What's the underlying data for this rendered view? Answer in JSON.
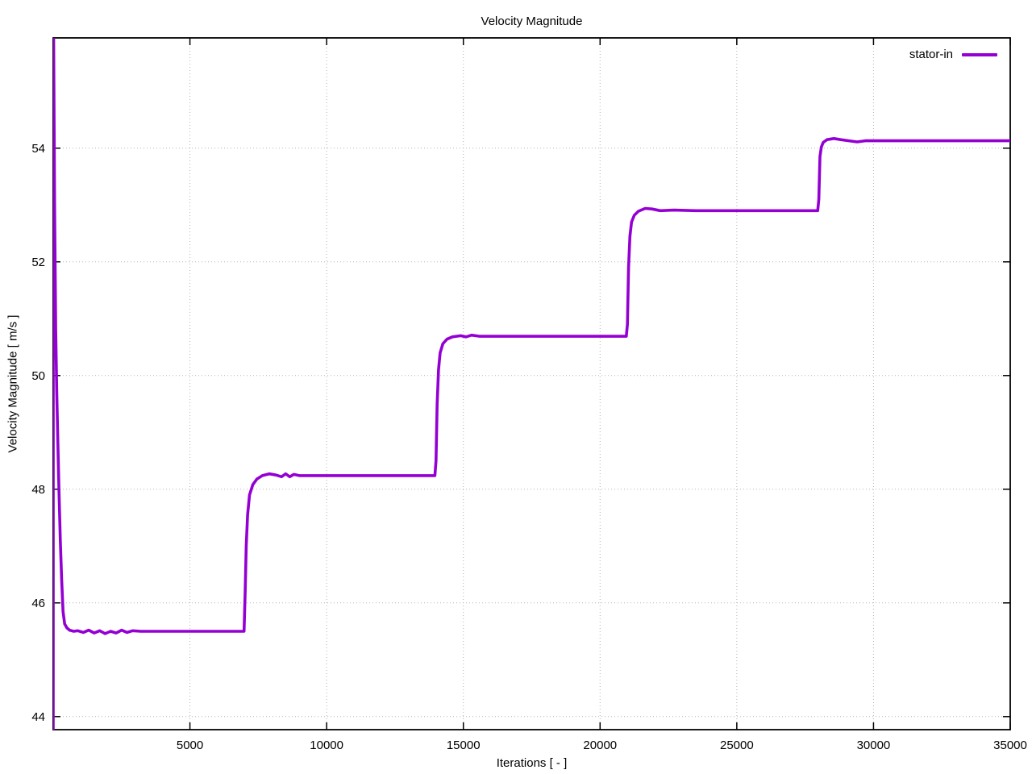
{
  "chart_data": {
    "type": "line",
    "title": "Velocity Magnitude",
    "xlabel": "Iterations [ - ]",
    "ylabel": "Velocity Magnitude [ m/s ]",
    "xlim": [
      0,
      35000
    ],
    "ylim": [
      43.77,
      55.94
    ],
    "xticks": [
      5000,
      10000,
      15000,
      20000,
      25000,
      30000,
      35000
    ],
    "yticks": [
      44,
      46,
      48,
      50,
      52,
      54
    ],
    "grid": true,
    "grid_style": "dotted",
    "legend_position": "top-right-inside",
    "background_color": "#ffffff",
    "grid_color": "#b3b3b3",
    "border_color": "#000000",
    "series": [
      {
        "name": "stator-in",
        "color": "#9400d3",
        "points": [
          [
            0,
            43.0
          ],
          [
            3,
            57.0
          ],
          [
            50,
            53.0
          ],
          [
            90,
            50.8
          ],
          [
            130,
            49.7
          ],
          [
            170,
            48.8
          ],
          [
            210,
            48.0
          ],
          [
            260,
            47.1
          ],
          [
            310,
            46.4
          ],
          [
            360,
            45.85
          ],
          [
            420,
            45.63
          ],
          [
            500,
            45.56
          ],
          [
            600,
            45.52
          ],
          [
            750,
            45.5
          ],
          [
            900,
            45.51
          ],
          [
            1100,
            45.48
          ],
          [
            1300,
            45.52
          ],
          [
            1500,
            45.47
          ],
          [
            1700,
            45.51
          ],
          [
            1900,
            45.46
          ],
          [
            2100,
            45.5
          ],
          [
            2300,
            45.47
          ],
          [
            2500,
            45.52
          ],
          [
            2700,
            45.48
          ],
          [
            2900,
            45.51
          ],
          [
            3200,
            45.5
          ],
          [
            3600,
            45.5
          ],
          [
            4200,
            45.5
          ],
          [
            5000,
            45.5
          ],
          [
            6000,
            45.5
          ],
          [
            6980,
            45.5
          ],
          [
            7020,
            46.2
          ],
          [
            7060,
            47.0
          ],
          [
            7110,
            47.55
          ],
          [
            7180,
            47.9
          ],
          [
            7300,
            48.08
          ],
          [
            7450,
            48.18
          ],
          [
            7650,
            48.24
          ],
          [
            7900,
            48.27
          ],
          [
            8150,
            48.25
          ],
          [
            8350,
            48.22
          ],
          [
            8500,
            48.27
          ],
          [
            8650,
            48.22
          ],
          [
            8800,
            48.26
          ],
          [
            9000,
            48.24
          ],
          [
            9400,
            48.24
          ],
          [
            10000,
            48.24
          ],
          [
            11000,
            48.24
          ],
          [
            12500,
            48.24
          ],
          [
            13960,
            48.24
          ],
          [
            14000,
            48.5
          ],
          [
            14040,
            49.5
          ],
          [
            14090,
            50.1
          ],
          [
            14150,
            50.4
          ],
          [
            14250,
            50.56
          ],
          [
            14400,
            50.64
          ],
          [
            14600,
            50.68
          ],
          [
            14900,
            50.7
          ],
          [
            15100,
            50.68
          ],
          [
            15300,
            50.71
          ],
          [
            15600,
            50.69
          ],
          [
            16500,
            50.69
          ],
          [
            18000,
            50.69
          ],
          [
            19500,
            50.69
          ],
          [
            20960,
            50.69
          ],
          [
            21000,
            50.9
          ],
          [
            21040,
            51.9
          ],
          [
            21090,
            52.45
          ],
          [
            21150,
            52.7
          ],
          [
            21250,
            52.82
          ],
          [
            21400,
            52.89
          ],
          [
            21650,
            52.94
          ],
          [
            21900,
            52.93
          ],
          [
            22200,
            52.9
          ],
          [
            22700,
            52.91
          ],
          [
            23500,
            52.9
          ],
          [
            25000,
            52.9
          ],
          [
            26500,
            52.9
          ],
          [
            27960,
            52.9
          ],
          [
            28000,
            53.1
          ],
          [
            28040,
            53.85
          ],
          [
            28090,
            54.02
          ],
          [
            28160,
            54.1
          ],
          [
            28300,
            54.15
          ],
          [
            28550,
            54.17
          ],
          [
            28800,
            54.15
          ],
          [
            29100,
            54.13
          ],
          [
            29400,
            54.11
          ],
          [
            29700,
            54.13
          ],
          [
            30500,
            54.13
          ],
          [
            32000,
            54.13
          ],
          [
            33500,
            54.13
          ],
          [
            35000,
            54.13
          ]
        ]
      }
    ]
  }
}
